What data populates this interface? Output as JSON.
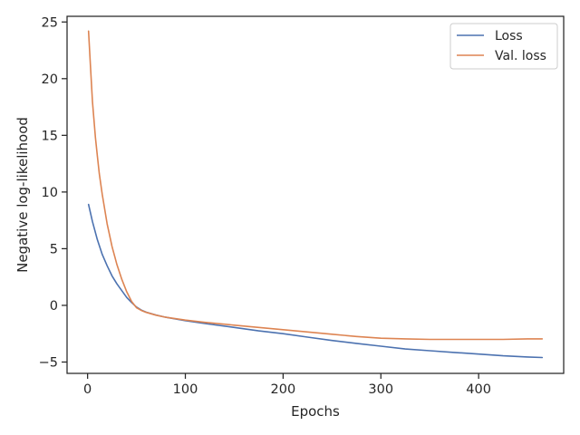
{
  "chart_data": {
    "type": "line",
    "title": "",
    "xlabel": "Epochs",
    "ylabel": "Negative log-likelihood",
    "xlim": [
      -21,
      487
    ],
    "ylim": [
      -6,
      25.5
    ],
    "xticks": [
      0,
      100,
      200,
      300,
      400
    ],
    "yticks": [
      -5,
      0,
      5,
      10,
      15,
      20,
      25
    ],
    "xtick_labels": [
      "0",
      "100",
      "200",
      "300",
      "400"
    ],
    "ytick_labels": [
      "−5",
      "0",
      "5",
      "10",
      "15",
      "20",
      "25"
    ],
    "grid": false,
    "legend_position": "top-right",
    "series": [
      {
        "name": "Loss",
        "color": "#4c72b0",
        "x": [
          1,
          5,
          10,
          15,
          20,
          25,
          30,
          35,
          40,
          45,
          50,
          55,
          60,
          70,
          80,
          90,
          100,
          120,
          150,
          175,
          200,
          225,
          250,
          275,
          300,
          325,
          350,
          375,
          400,
          425,
          450,
          465
        ],
        "y": [
          8.9,
          7.4,
          5.8,
          4.5,
          3.5,
          2.6,
          1.9,
          1.3,
          0.7,
          0.25,
          -0.15,
          -0.42,
          -0.6,
          -0.85,
          -1.05,
          -1.2,
          -1.35,
          -1.6,
          -1.95,
          -2.25,
          -2.5,
          -2.8,
          -3.1,
          -3.35,
          -3.6,
          -3.85,
          -4.0,
          -4.15,
          -4.3,
          -4.45,
          -4.55,
          -4.6
        ]
      },
      {
        "name": "Val. loss",
        "color": "#dd8452",
        "x": [
          1,
          3,
          5,
          8,
          10,
          12,
          15,
          20,
          25,
          30,
          35,
          40,
          45,
          50,
          55,
          60,
          70,
          80,
          100,
          120,
          150,
          175,
          200,
          225,
          250,
          275,
          300,
          325,
          350,
          375,
          400,
          425,
          450,
          465
        ],
        "y": [
          24.2,
          21.0,
          18.0,
          14.8,
          13.2,
          11.6,
          9.8,
          7.2,
          5.2,
          3.6,
          2.3,
          1.2,
          0.35,
          -0.2,
          -0.45,
          -0.62,
          -0.87,
          -1.05,
          -1.3,
          -1.5,
          -1.75,
          -1.95,
          -2.15,
          -2.35,
          -2.55,
          -2.75,
          -2.9,
          -2.95,
          -3.0,
          -3.0,
          -3.0,
          -3.0,
          -2.95,
          -2.95
        ]
      }
    ]
  }
}
